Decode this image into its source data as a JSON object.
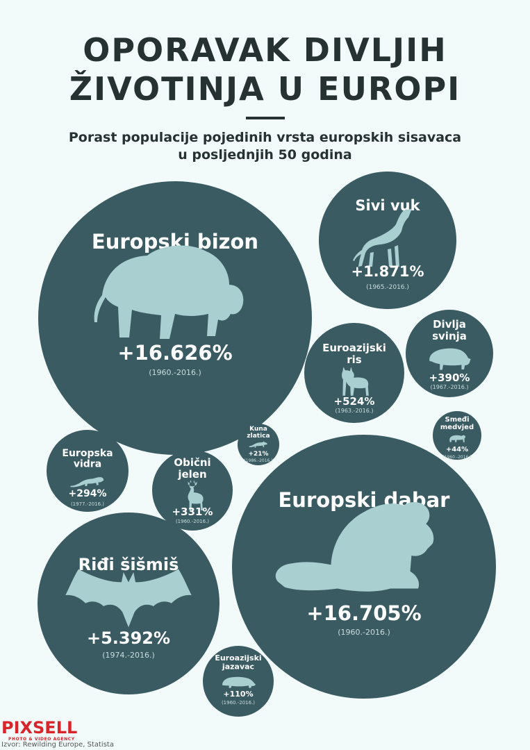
{
  "title_line1": "OPORAVAK DIVLJIH",
  "title_line2": "ŽIVOTINJA U EUROPI",
  "subtitle_line1": "Porast populacije pojedinih vrsta europskih sisavaca",
  "subtitle_line2": "u posljednjih 50 godina",
  "logo": {
    "name": "PIXSELL",
    "tagline": "PHOTO & VIDEO AGENCY"
  },
  "source": "Izvor: Rewilding Europe, Statista",
  "colors": {
    "bubble": "#3a5b62",
    "icon": "#a9cfd1",
    "background": "#f2fbfa",
    "logo": "#d9242c"
  },
  "chart_data": {
    "type": "bubble",
    "title": "OPORAVAK DIVLJIH ŽIVOTINJA U EUROPI",
    "subtitle": "Porast populacije pojedinih vrsta europskih sisavaca u posljednjih 50 godina",
    "unit": "%",
    "series": [
      {
        "name": [
          "Europski bizon"
        ],
        "label": "+16.626%",
        "value": 16626,
        "period": "(1960.-2016.)",
        "icon": "bison-icon"
      },
      {
        "name": [
          "Sivi vuk"
        ],
        "label": "+1.871%",
        "value": 1871,
        "period": "(1965.-2016.)",
        "icon": "wolf-icon"
      },
      {
        "name": [
          "Euroazijski",
          "ris"
        ],
        "label": "+524%",
        "value": 524,
        "period": "(1963.-2016.)",
        "icon": "lynx-icon"
      },
      {
        "name": [
          "Divlja",
          "svinja"
        ],
        "label": "+390%",
        "value": 390,
        "period": "(1967.-2016.)",
        "icon": "boar-icon"
      },
      {
        "name": [
          "Kuna",
          "zlatica"
        ],
        "label": "+21%",
        "value": 21,
        "period": "(1986.-2016.)",
        "icon": "marten-icon"
      },
      {
        "name": [
          "Smeđi",
          "medvjed"
        ],
        "label": "+44%",
        "value": 44,
        "period": "(1960.-2016.)",
        "icon": "bear-icon"
      },
      {
        "name": [
          "Europska",
          "vidra"
        ],
        "label": "+294%",
        "value": 294,
        "period": "(1977.-2016.)",
        "icon": "otter-icon"
      },
      {
        "name": [
          "Obični",
          "jelen"
        ],
        "label": "+331%",
        "value": 331,
        "period": "(1960.-2016.)",
        "icon": "deer-icon"
      },
      {
        "name": [
          "Europski dabar"
        ],
        "label": "+16.705%",
        "value": 16705,
        "period": "(1960.-2016.)",
        "icon": "beaver-icon"
      },
      {
        "name": [
          "Riđi šišmiš"
        ],
        "label": "+5.392%",
        "value": 5392,
        "period": "(1974.-2016.)",
        "icon": "bat-icon"
      },
      {
        "name": [
          "Euroazijski",
          "jazavac"
        ],
        "label": "+110%",
        "value": 110,
        "period": "(1960.-2016.)",
        "icon": "badger-icon"
      }
    ]
  }
}
